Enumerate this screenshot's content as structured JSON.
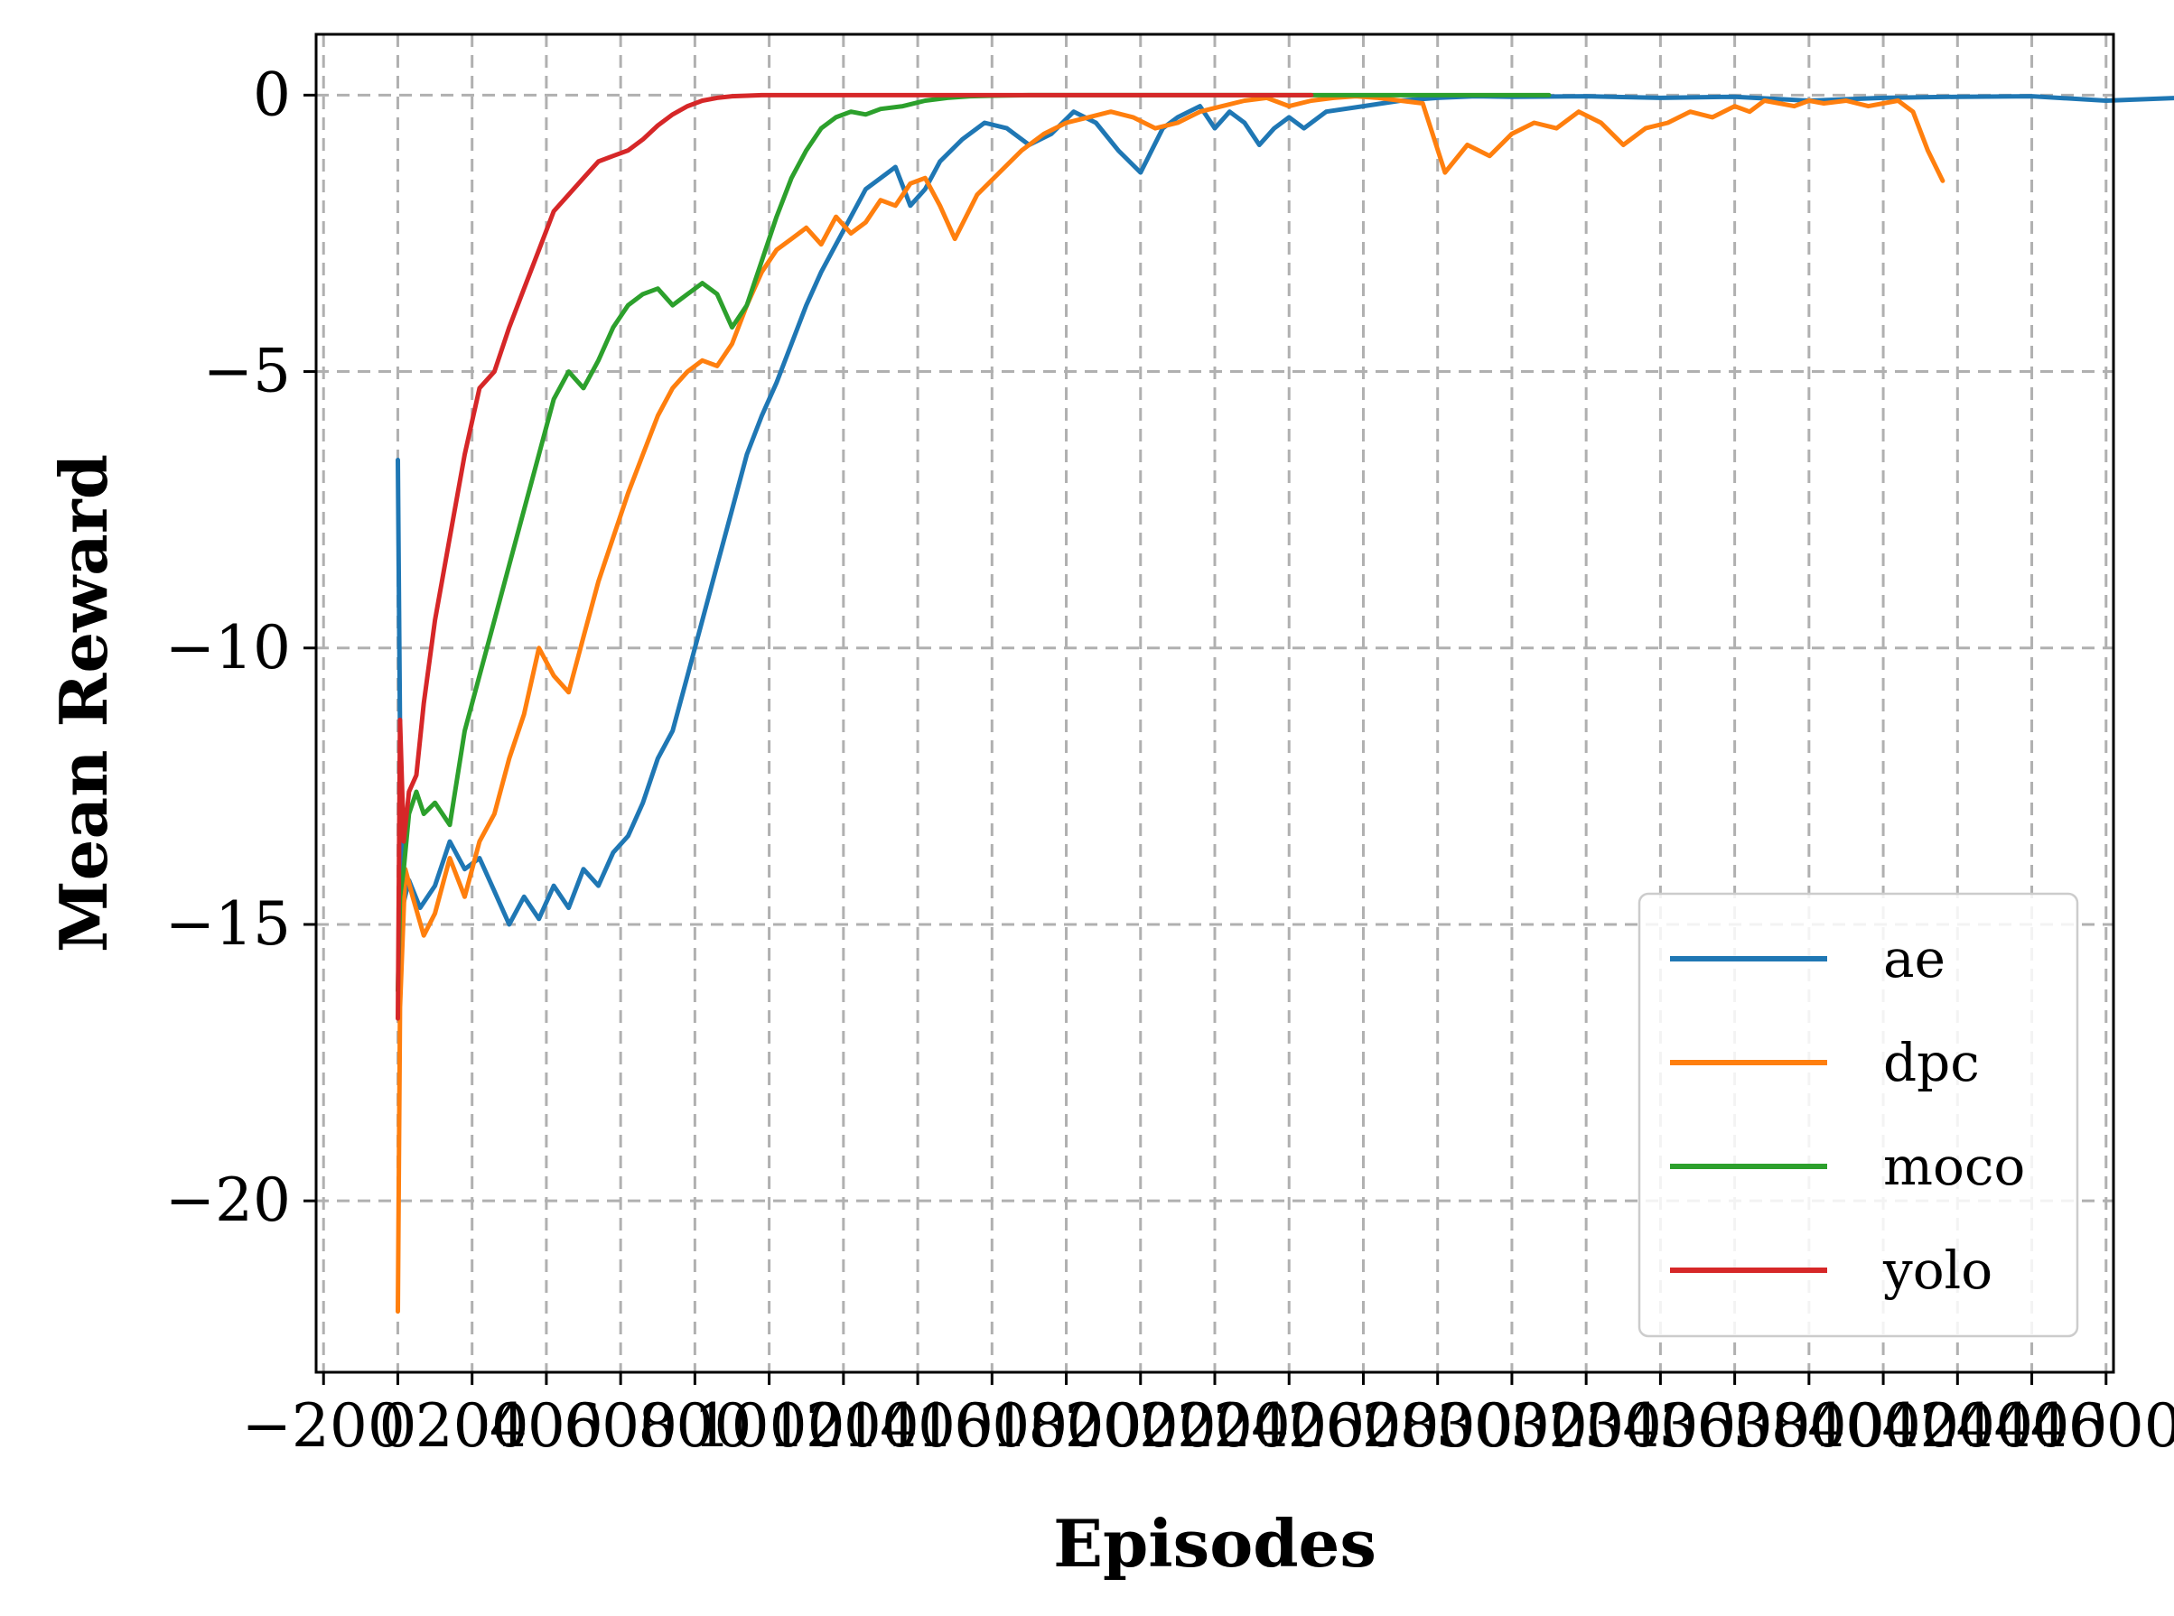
{
  "chart_data": {
    "type": "line",
    "xlabel": "Episodes",
    "ylabel": "Mean Reward",
    "xlim": [
      -220,
      4620
    ],
    "ylim": [
      -23.1,
      1.1
    ],
    "grid": true,
    "legend_position": "lower-right",
    "x_ticks": [
      -200,
      0,
      200,
      400,
      600,
      800,
      1000,
      1200,
      1400,
      1600,
      1800,
      2000,
      2200,
      2400,
      2600,
      2800,
      3000,
      3200,
      3400,
      3600,
      3800,
      4000,
      4200,
      4400,
      4600
    ],
    "x_tick_labels": [
      "−200",
      "0",
      "200",
      "400",
      "600",
      "800",
      "1000",
      "1200",
      "1400",
      "1600",
      "1800",
      "2000",
      "2200",
      "2400",
      "2600",
      "2800",
      "3000",
      "3200",
      "3400",
      "3600",
      "3800",
      "4000",
      "4200",
      "4400",
      "4600"
    ],
    "y_ticks": [
      0,
      -5,
      -10,
      -15,
      -20
    ],
    "y_tick_labels": [
      "0",
      "−5",
      "−10",
      "−15",
      "−20"
    ],
    "series": [
      {
        "name": "ae",
        "color": "#1f77b4",
        "x": [
          0,
          3,
          8,
          15,
          30,
          50,
          70,
          90,
          110,
          130,
          150,
          170,
          190,
          210,
          230,
          250,
          270,
          290,
          310,
          330,
          350,
          370,
          390,
          410,
          430,
          450,
          470,
          490,
          510,
          530,
          550,
          570,
          590,
          610,
          630,
          650,
          670,
          690,
          710,
          730,
          760,
          790,
          820,
          850,
          880,
          910,
          940,
          970,
          1000,
          1030,
          1050,
          1080,
          1100,
          1120,
          1140,
          1160,
          1180,
          1200,
          1220,
          1250,
          1300,
          1350,
          1400,
          1450,
          1500,
          1600,
          1700,
          1800,
          1900,
          2000,
          2100,
          2200,
          2300,
          2400,
          2450,
          2500,
          2550,
          2600,
          2650,
          2700,
          2800,
          2900,
          3000,
          3050,
          3100,
          3150,
          3200,
          3250,
          3300,
          3350,
          3400,
          3450,
          3500,
          3600,
          3700,
          3800,
          3850,
          3870,
          3900,
          3950,
          4000,
          4050,
          4100,
          4150,
          4200,
          4250,
          4300,
          4350,
          4400,
          4450,
          4500
        ],
        "y": [
          -6.6,
          -11.5,
          -14.6,
          -14.2,
          -14.7,
          -14.3,
          -13.5,
          -14.0,
          -13.8,
          -14.4,
          -15.0,
          -14.5,
          -14.9,
          -14.3,
          -14.7,
          -14.0,
          -14.3,
          -13.7,
          -13.4,
          -12.8,
          -12.0,
          -11.5,
          -10.5,
          -9.5,
          -8.5,
          -7.5,
          -6.5,
          -5.8,
          -5.2,
          -4.5,
          -3.8,
          -3.2,
          -2.7,
          -2.2,
          -1.7,
          -1.5,
          -1.3,
          -2.0,
          -1.7,
          -1.2,
          -0.8,
          -0.5,
          -0.6,
          -0.9,
          -0.7,
          -0.3,
          -0.5,
          -1.0,
          -1.4,
          -0.6,
          -0.4,
          -0.2,
          -0.6,
          -0.3,
          -0.5,
          -0.9,
          -0.6,
          -0.4,
          -0.6,
          -0.3,
          -0.2,
          -0.1,
          -0.05,
          -0.02,
          -0.03,
          -0.02,
          -0.05,
          -0.03,
          -0.1,
          -0.05,
          -0.03,
          -0.02,
          -0.1,
          -0.05,
          -0.15,
          -0.6,
          -0.3,
          -0.15,
          -0.1,
          -0.05,
          -0.03,
          -0.02,
          -0.1,
          -0.2,
          -0.3,
          -0.15,
          -0.25,
          -0.2,
          -0.15,
          -0.3,
          -0.25,
          -0.1,
          -0.05,
          -0.03,
          -0.02,
          -0.05,
          -0.5,
          -0.3,
          -0.4,
          -0.5,
          -0.8,
          -0.5,
          -0.4,
          -0.7,
          -0.3,
          -0.2,
          -0.1,
          -0.05,
          -0.2,
          -0.1,
          -0.12
        ],
        "x_scale": 0.5
      },
      {
        "name": "dpc",
        "color": "#ff7f0e",
        "x": [
          0,
          3,
          10,
          20,
          35,
          50,
          70,
          90,
          110,
          130,
          150,
          170,
          190,
          210,
          230,
          250,
          270,
          290,
          310,
          330,
          350,
          370,
          390,
          410,
          430,
          450,
          470,
          490,
          510,
          530,
          550,
          570,
          590,
          610,
          630,
          650,
          670,
          690,
          710,
          730,
          750,
          780,
          810,
          840,
          870,
          900,
          930,
          960,
          990,
          1020,
          1050,
          1080,
          1110,
          1140,
          1170,
          1200,
          1230,
          1260,
          1290,
          1320,
          1350,
          1380,
          1410,
          1440,
          1470,
          1500,
          1530,
          1560,
          1590,
          1620,
          1650,
          1680,
          1710,
          1740,
          1770,
          1800,
          1820,
          1840,
          1860,
          1880,
          1900,
          1920,
          1950,
          1980,
          2000,
          2020,
          2040,
          2060,
          2080
        ],
        "y": [
          -22.0,
          -16.5,
          -14.0,
          -14.5,
          -15.2,
          -14.8,
          -13.8,
          -14.5,
          -13.5,
          -13.0,
          -12.0,
          -11.2,
          -10.0,
          -10.5,
          -10.8,
          -9.8,
          -8.8,
          -8.0,
          -7.2,
          -6.5,
          -5.8,
          -5.3,
          -5.0,
          -4.8,
          -4.9,
          -4.5,
          -3.8,
          -3.2,
          -2.8,
          -2.6,
          -2.4,
          -2.7,
          -2.2,
          -2.5,
          -2.3,
          -1.9,
          -2.0,
          -1.6,
          -1.5,
          -2.0,
          -2.6,
          -1.8,
          -1.4,
          -1.0,
          -0.7,
          -0.5,
          -0.4,
          -0.3,
          -0.4,
          -0.6,
          -0.5,
          -0.3,
          -0.2,
          -0.1,
          -0.05,
          -0.2,
          -0.1,
          -0.05,
          -0.02,
          -0.05,
          -0.1,
          -0.15,
          -1.4,
          -0.9,
          -1.1,
          -0.7,
          -0.5,
          -0.6,
          -0.3,
          -0.5,
          -0.9,
          -0.6,
          -0.5,
          -0.3,
          -0.4,
          -0.2,
          -0.3,
          -0.1,
          -0.15,
          -0.2,
          -0.1,
          -0.15,
          -0.1,
          -0.2,
          -0.15,
          -0.1,
          -0.3,
          -1.0,
          -1.55
        ],
        "x_scale": 0.5
      },
      {
        "name": "moco",
        "color": "#2ca02c",
        "x": [
          0,
          3,
          8,
          15,
          25,
          35,
          50,
          70,
          90,
          110,
          130,
          150,
          170,
          190,
          210,
          230,
          250,
          270,
          290,
          310,
          330,
          350,
          370,
          390,
          410,
          430,
          450,
          470,
          490,
          510,
          530,
          550,
          570,
          590,
          610,
          630,
          650,
          680,
          710,
          740,
          770,
          800,
          850,
          900,
          950,
          1000,
          1050,
          1100,
          1150,
          1200,
          1250,
          1300,
          1350,
          1400,
          1450,
          1500,
          1550
        ],
        "y": [
          -16.2,
          -14.5,
          -14.0,
          -13.0,
          -12.6,
          -13.0,
          -12.8,
          -13.2,
          -11.5,
          -10.5,
          -9.5,
          -8.5,
          -7.5,
          -6.5,
          -5.5,
          -5.0,
          -5.3,
          -4.8,
          -4.2,
          -3.8,
          -3.6,
          -3.5,
          -3.8,
          -3.6,
          -3.4,
          -3.6,
          -4.2,
          -3.8,
          -3.0,
          -2.2,
          -1.5,
          -1.0,
          -0.6,
          -0.4,
          -0.3,
          -0.35,
          -0.25,
          -0.2,
          -0.1,
          -0.05,
          -0.02,
          -0.01,
          0,
          0,
          0,
          0,
          0,
          0,
          0,
          0,
          0,
          0,
          0,
          0,
          0,
          0,
          0
        ],
        "x_scale": 0.5
      },
      {
        "name": "yolo",
        "color": "#d62728",
        "x": [
          0,
          3,
          8,
          15,
          25,
          35,
          50,
          70,
          90,
          110,
          130,
          150,
          170,
          190,
          210,
          230,
          250,
          270,
          290,
          310,
          330,
          350,
          370,
          390,
          410,
          430,
          450,
          470,
          490,
          510,
          540,
          570,
          600,
          650,
          700,
          800,
          900,
          1000,
          1100,
          1200,
          1230
        ],
        "y": [
          -16.7,
          -11.3,
          -13.5,
          -12.6,
          -12.3,
          -11.0,
          -9.5,
          -8.0,
          -6.5,
          -5.3,
          -5.0,
          -4.2,
          -3.5,
          -2.8,
          -2.1,
          -1.8,
          -1.5,
          -1.2,
          -1.1,
          -1.0,
          -0.8,
          -0.55,
          -0.35,
          -0.2,
          -0.1,
          -0.05,
          -0.02,
          -0.01,
          0,
          0,
          0,
          0,
          0,
          0,
          0,
          0,
          0,
          0,
          0,
          0,
          0
        ],
        "x_scale": 0.5
      }
    ]
  }
}
